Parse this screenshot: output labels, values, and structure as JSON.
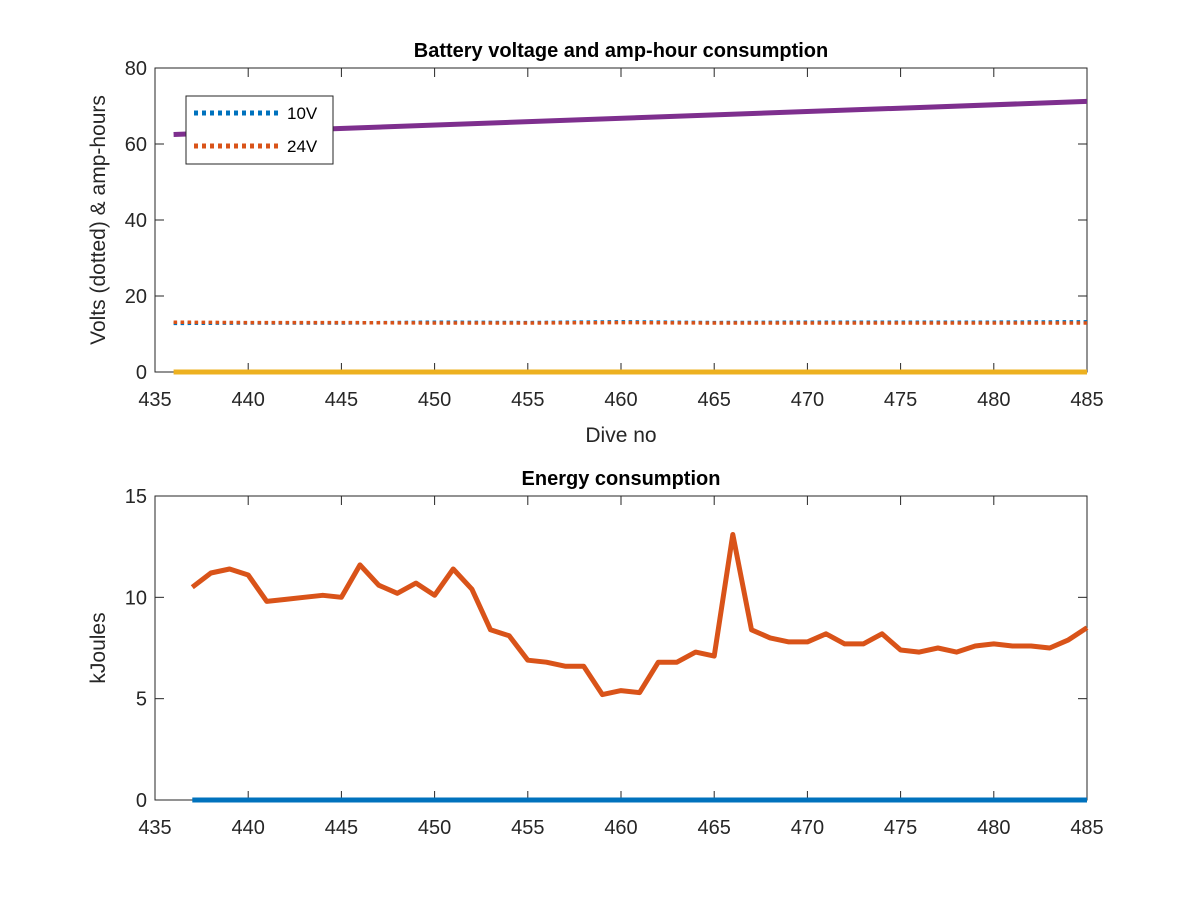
{
  "charts": [
    {
      "type": "line",
      "title": "Battery voltage and amp-hour consumption",
      "xlabel": "Dive no",
      "ylabel": "Volts (dotted) & amp-hours",
      "xlim": [
        435,
        485
      ],
      "ylim": [
        0,
        80
      ],
      "xticks": [
        435,
        440,
        445,
        450,
        455,
        460,
        465,
        470,
        475,
        480,
        485
      ],
      "yticks": [
        0,
        20,
        40,
        60,
        80
      ],
      "grid": false,
      "legend": {
        "placement": "top-left",
        "entries": [
          "10V",
          "24V"
        ]
      },
      "series": [
        {
          "name": "10V",
          "color": "#0072BD",
          "style": "dotted",
          "x": [
            436,
            440,
            445,
            450,
            455,
            460,
            465,
            470,
            475,
            480,
            485
          ],
          "y": [
            12.8,
            12.9,
            12.9,
            13.1,
            13.0,
            13.2,
            13.0,
            13.1,
            13.1,
            13.1,
            13.2
          ]
        },
        {
          "name": "24V",
          "color": "#D95319",
          "style": "dotted",
          "x": [
            436,
            440,
            445,
            450,
            455,
            460,
            465,
            470,
            475,
            480,
            485
          ],
          "y": [
            13.1,
            13.0,
            13.0,
            12.9,
            12.9,
            13.0,
            12.9,
            12.9,
            12.9,
            12.9,
            12.9
          ]
        },
        {
          "color": "#7E2F8E",
          "style": "solid",
          "x": [
            436,
            485
          ],
          "y": [
            62.5,
            71.2
          ]
        },
        {
          "color": "#EDB120",
          "style": "solid",
          "x": [
            436,
            485
          ],
          "y": [
            0,
            0
          ]
        }
      ]
    },
    {
      "type": "line",
      "title": "Energy consumption",
      "xlabel": "",
      "ylabel": "kJoules",
      "xlim": [
        435,
        485
      ],
      "ylim": [
        0,
        15
      ],
      "xticks": [
        435,
        440,
        445,
        450,
        455,
        460,
        465,
        470,
        475,
        480,
        485
      ],
      "yticks": [
        0,
        5,
        10,
        15
      ],
      "grid": false,
      "series": [
        {
          "color": "#D95319",
          "style": "solid",
          "x": [
            437,
            438,
            439,
            440,
            441,
            442,
            443,
            444,
            445,
            446,
            447,
            448,
            449,
            450,
            451,
            452,
            453,
            454,
            455,
            456,
            457,
            458,
            459,
            460,
            461,
            462,
            463,
            464,
            465,
            466,
            467,
            468,
            469,
            470,
            471,
            472,
            473,
            474,
            475,
            476,
            477,
            478,
            479,
            480,
            481,
            482,
            483,
            484,
            485
          ],
          "y": [
            10.5,
            11.2,
            11.4,
            11.1,
            9.8,
            9.9,
            10.0,
            10.1,
            10.0,
            11.6,
            10.6,
            10.2,
            10.7,
            10.1,
            11.4,
            10.4,
            8.4,
            8.1,
            6.9,
            6.8,
            6.6,
            6.6,
            5.2,
            5.4,
            5.3,
            6.8,
            6.8,
            7.3,
            7.1,
            13.1,
            8.4,
            8.0,
            7.8,
            7.8,
            8.2,
            7.7,
            7.7,
            8.2,
            7.4,
            7.3,
            7.5,
            7.3,
            7.6,
            7.7,
            7.6,
            7.6,
            7.5,
            7.9,
            8.5
          ]
        },
        {
          "color": "#0072BD",
          "style": "solid",
          "x": [
            437,
            485
          ],
          "y": [
            0,
            0
          ]
        }
      ]
    }
  ]
}
